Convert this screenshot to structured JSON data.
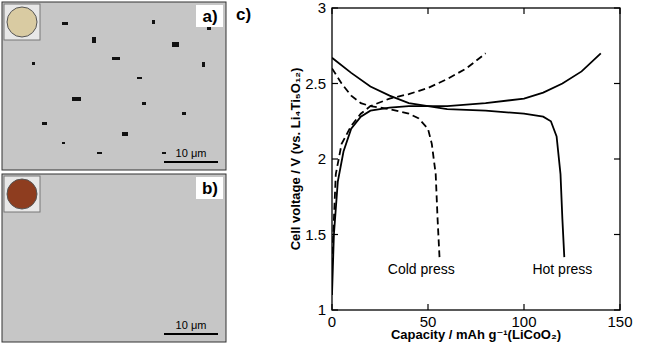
{
  "images": [
    {
      "label": "a)",
      "scale_bar": "10 μm"
    },
    {
      "label": "b)",
      "scale_bar": "10 μm"
    }
  ],
  "chart_data": {
    "type": "line",
    "panel_label": "c)",
    "x_label": "Capacity / mAh g⁻¹(LiCoO₂)",
    "y_label": "Cell voltage / V (vs. Li₄Ti₅O₁₂)",
    "xlim": [
      0,
      150
    ],
    "ylim": [
      1,
      3
    ],
    "xticks": [
      0,
      50,
      100,
      150
    ],
    "yticks": [
      1,
      1.5,
      2,
      2.5,
      3
    ],
    "grid": false,
    "annotations": [
      "Cold press",
      "Hot press"
    ],
    "series": [
      {
        "color": "#000000",
        "line_style": "solid",
        "x": [
          0,
          1,
          3,
          6,
          10,
          15,
          20,
          30,
          40,
          60,
          80,
          100,
          110,
          120,
          130,
          140
        ],
        "values": [
          1.1,
          1.5,
          1.85,
          2.05,
          2.2,
          2.28,
          2.32,
          2.34,
          2.35,
          2.35,
          2.37,
          2.4,
          2.44,
          2.5,
          2.58,
          2.7
        ]
      },
      {
        "color": "#000000",
        "line_style": "solid",
        "x": [
          0,
          10,
          20,
          30,
          40,
          60,
          80,
          100,
          110,
          114,
          117,
          119,
          120,
          121
        ],
        "values": [
          2.67,
          2.57,
          2.48,
          2.42,
          2.37,
          2.33,
          2.32,
          2.3,
          2.28,
          2.25,
          2.15,
          1.9,
          1.6,
          1.35
        ]
      },
      {
        "color": "#000000",
        "line_style": "dashed",
        "x": [
          0,
          2,
          5,
          10,
          15,
          20,
          30,
          40,
          50,
          60,
          70,
          80
        ],
        "values": [
          1.3,
          1.9,
          2.1,
          2.22,
          2.3,
          2.35,
          2.4,
          2.43,
          2.47,
          2.53,
          2.6,
          2.7
        ]
      },
      {
        "color": "#000000",
        "line_style": "dashed",
        "x": [
          0,
          5,
          10,
          15,
          20,
          30,
          40,
          45,
          50,
          52,
          54,
          55,
          56
        ],
        "values": [
          2.6,
          2.5,
          2.42,
          2.37,
          2.35,
          2.33,
          2.3,
          2.27,
          2.2,
          2.1,
          1.9,
          1.6,
          1.35
        ]
      }
    ]
  }
}
